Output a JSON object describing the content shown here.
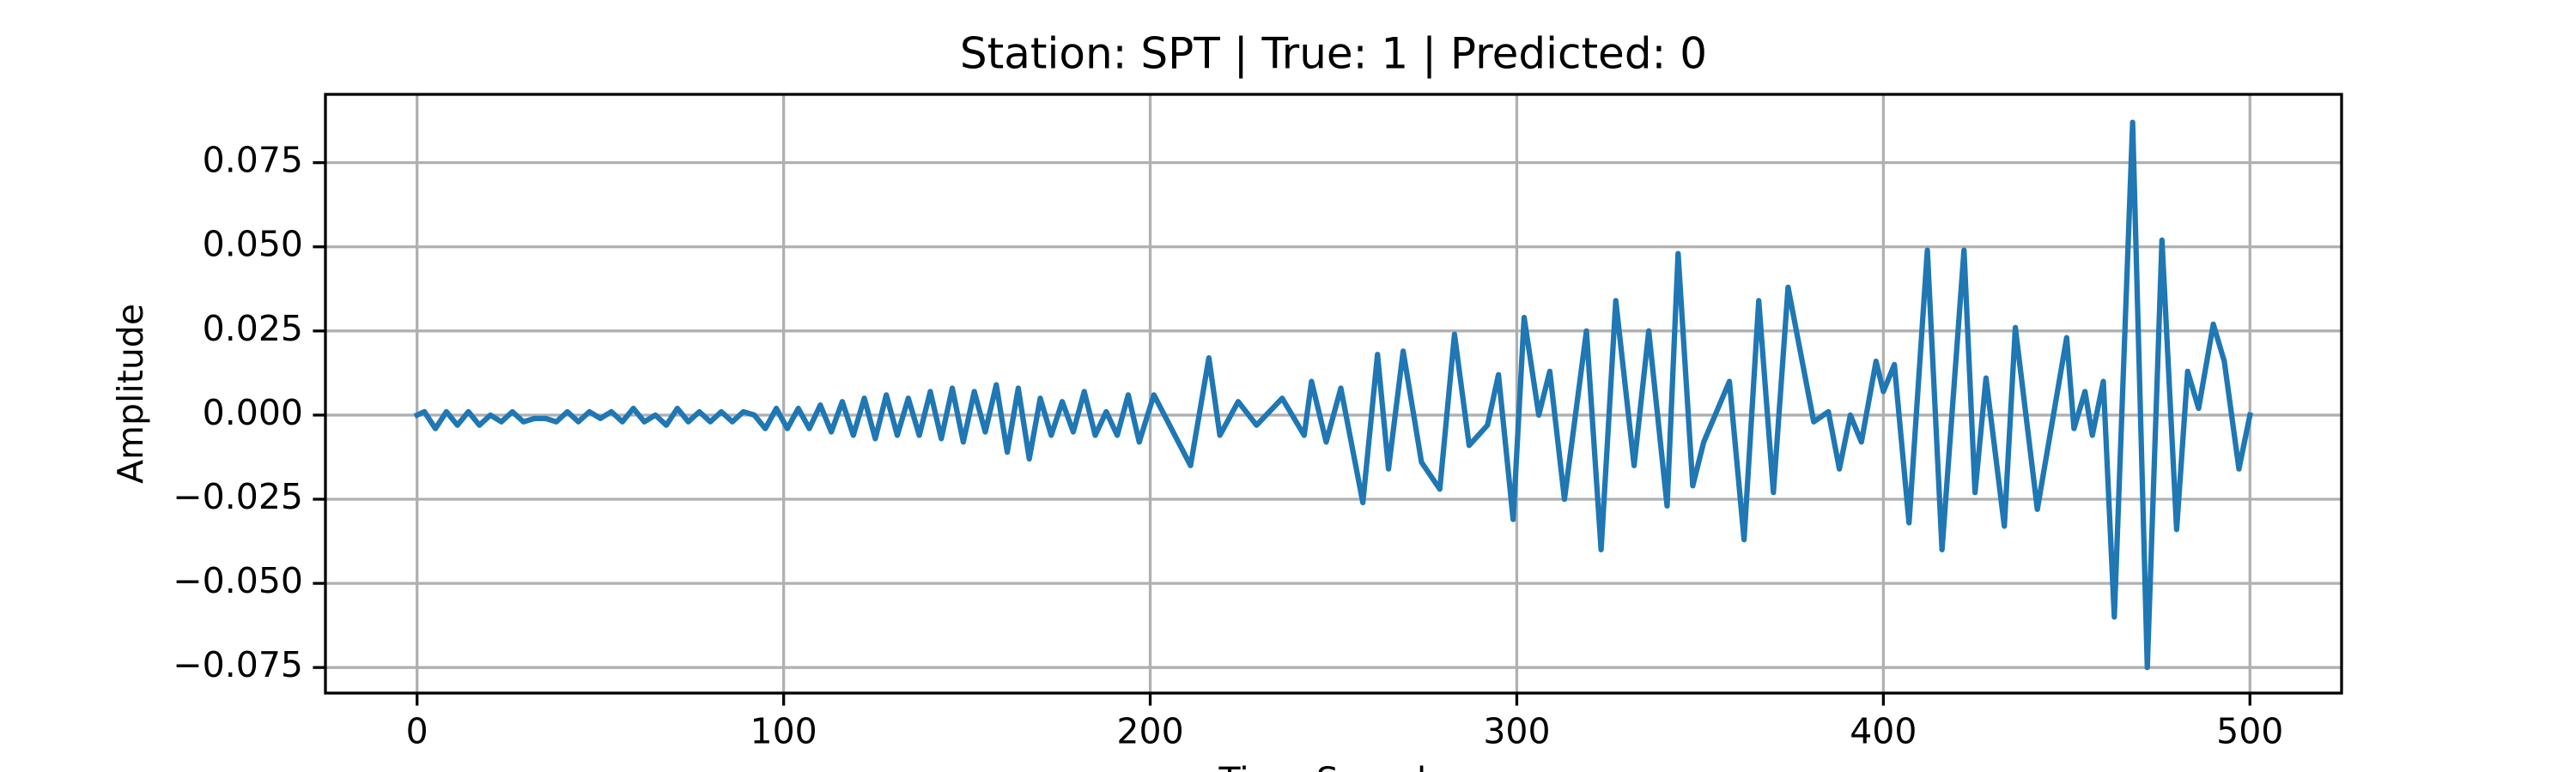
{
  "chart_data": {
    "type": "line",
    "title": "Station: SPT | True: 1 | Predicted: 0",
    "x_label": "Time Sample",
    "y_label": "Amplitude",
    "xlim": [
      -25,
      525
    ],
    "ylim": [
      -0.0826,
      0.0953
    ],
    "xticks": [
      0,
      100,
      200,
      300,
      400,
      500
    ],
    "yticks": [
      {
        "value": -0.075,
        "label": "−0.075"
      },
      {
        "value": -0.05,
        "label": "−0.050"
      },
      {
        "value": -0.025,
        "label": "−0.025"
      },
      {
        "value": 0,
        "label": "0.000"
      },
      0.025,
      {
        "value": 0.05,
        "label": "0.050"
      },
      0.075
    ],
    "grid": true,
    "x": [
      0,
      2,
      5,
      8,
      11,
      14,
      17,
      20,
      23,
      26,
      29,
      32,
      35,
      38,
      41,
      44,
      47,
      50,
      53,
      56,
      59,
      62,
      65,
      68,
      71,
      74,
      77,
      80,
      83,
      86,
      89,
      92,
      95,
      98,
      101,
      104,
      107,
      110,
      113,
      116,
      119,
      122,
      125,
      128,
      131,
      134,
      137,
      140,
      143,
      146,
      149,
      152,
      155,
      158,
      161,
      164,
      167,
      170,
      173,
      176,
      179,
      182,
      185,
      188,
      191,
      194,
      197,
      201,
      211,
      216,
      219,
      224,
      229,
      236,
      242,
      244,
      248,
      252,
      258,
      262,
      265,
      269,
      274,
      279,
      283,
      287,
      292,
      295,
      299,
      302,
      306,
      309,
      313,
      319,
      323,
      327,
      332,
      336,
      341,
      344,
      348,
      351,
      358,
      362,
      366,
      370,
      374,
      381,
      385,
      388,
      391,
      394,
      398,
      400,
      403,
      407,
      412,
      416,
      422,
      425,
      428,
      433,
      436,
      442,
      450,
      452,
      455,
      457,
      460,
      463,
      468,
      472,
      476,
      480,
      483,
      486,
      490,
      493,
      497,
      500
    ],
    "series": [
      {
        "name": "Amplitude",
        "color": "#1f77b4",
        "values": [
          0,
          0.001,
          -0.004,
          0.001,
          -0.003,
          0.001,
          -0.003,
          0,
          -0.002,
          0.001,
          -0.002,
          -0.001,
          -0.001,
          -0.002,
          0.001,
          -0.002,
          0.001,
          -0.001,
          0.001,
          -0.002,
          0.002,
          -0.002,
          0,
          -0.003,
          0.002,
          -0.002,
          0.001,
          -0.002,
          0.001,
          -0.002,
          0.001,
          0,
          -0.004,
          0.002,
          -0.004,
          0.002,
          -0.004,
          0.003,
          -0.005,
          0.004,
          -0.006,
          0.005,
          -0.007,
          0.006,
          -0.006,
          0.005,
          -0.006,
          0.007,
          -0.007,
          0.008,
          -0.008,
          0.007,
          -0.005,
          0.009,
          -0.011,
          0.008,
          -0.013,
          0.005,
          -0.006,
          0.004,
          -0.005,
          0.007,
          -0.006,
          0.001,
          -0.006,
          0.006,
          -0.008,
          0.006,
          -0.015,
          0.017,
          -0.006,
          0.004,
          -0.003,
          0.005,
          -0.006,
          0.01,
          -0.008,
          0.008,
          -0.026,
          0.018,
          -0.016,
          0.019,
          -0.014,
          -0.022,
          0.024,
          -0.009,
          -0.003,
          0.012,
          -0.031,
          0.029,
          0,
          0.013,
          -0.025,
          0.025,
          -0.04,
          0.034,
          -0.015,
          0.025,
          -0.027,
          0.048,
          -0.021,
          -0.008,
          0.01,
          -0.037,
          0.034,
          -0.023,
          0.038,
          -0.002,
          0.001,
          -0.016,
          0,
          -0.008,
          0.016,
          0.007,
          0.015,
          -0.032,
          0.049,
          -0.04,
          0.049,
          -0.023,
          0.011,
          -0.033,
          0.026,
          -0.028,
          0.023,
          -0.004,
          0.007,
          -0.006,
          0.01,
          -0.06,
          0.087,
          -0.075,
          0.052,
          -0.034,
          0.013,
          0.002,
          0.027,
          0.016,
          -0.016,
          0
        ]
      }
    ]
  }
}
